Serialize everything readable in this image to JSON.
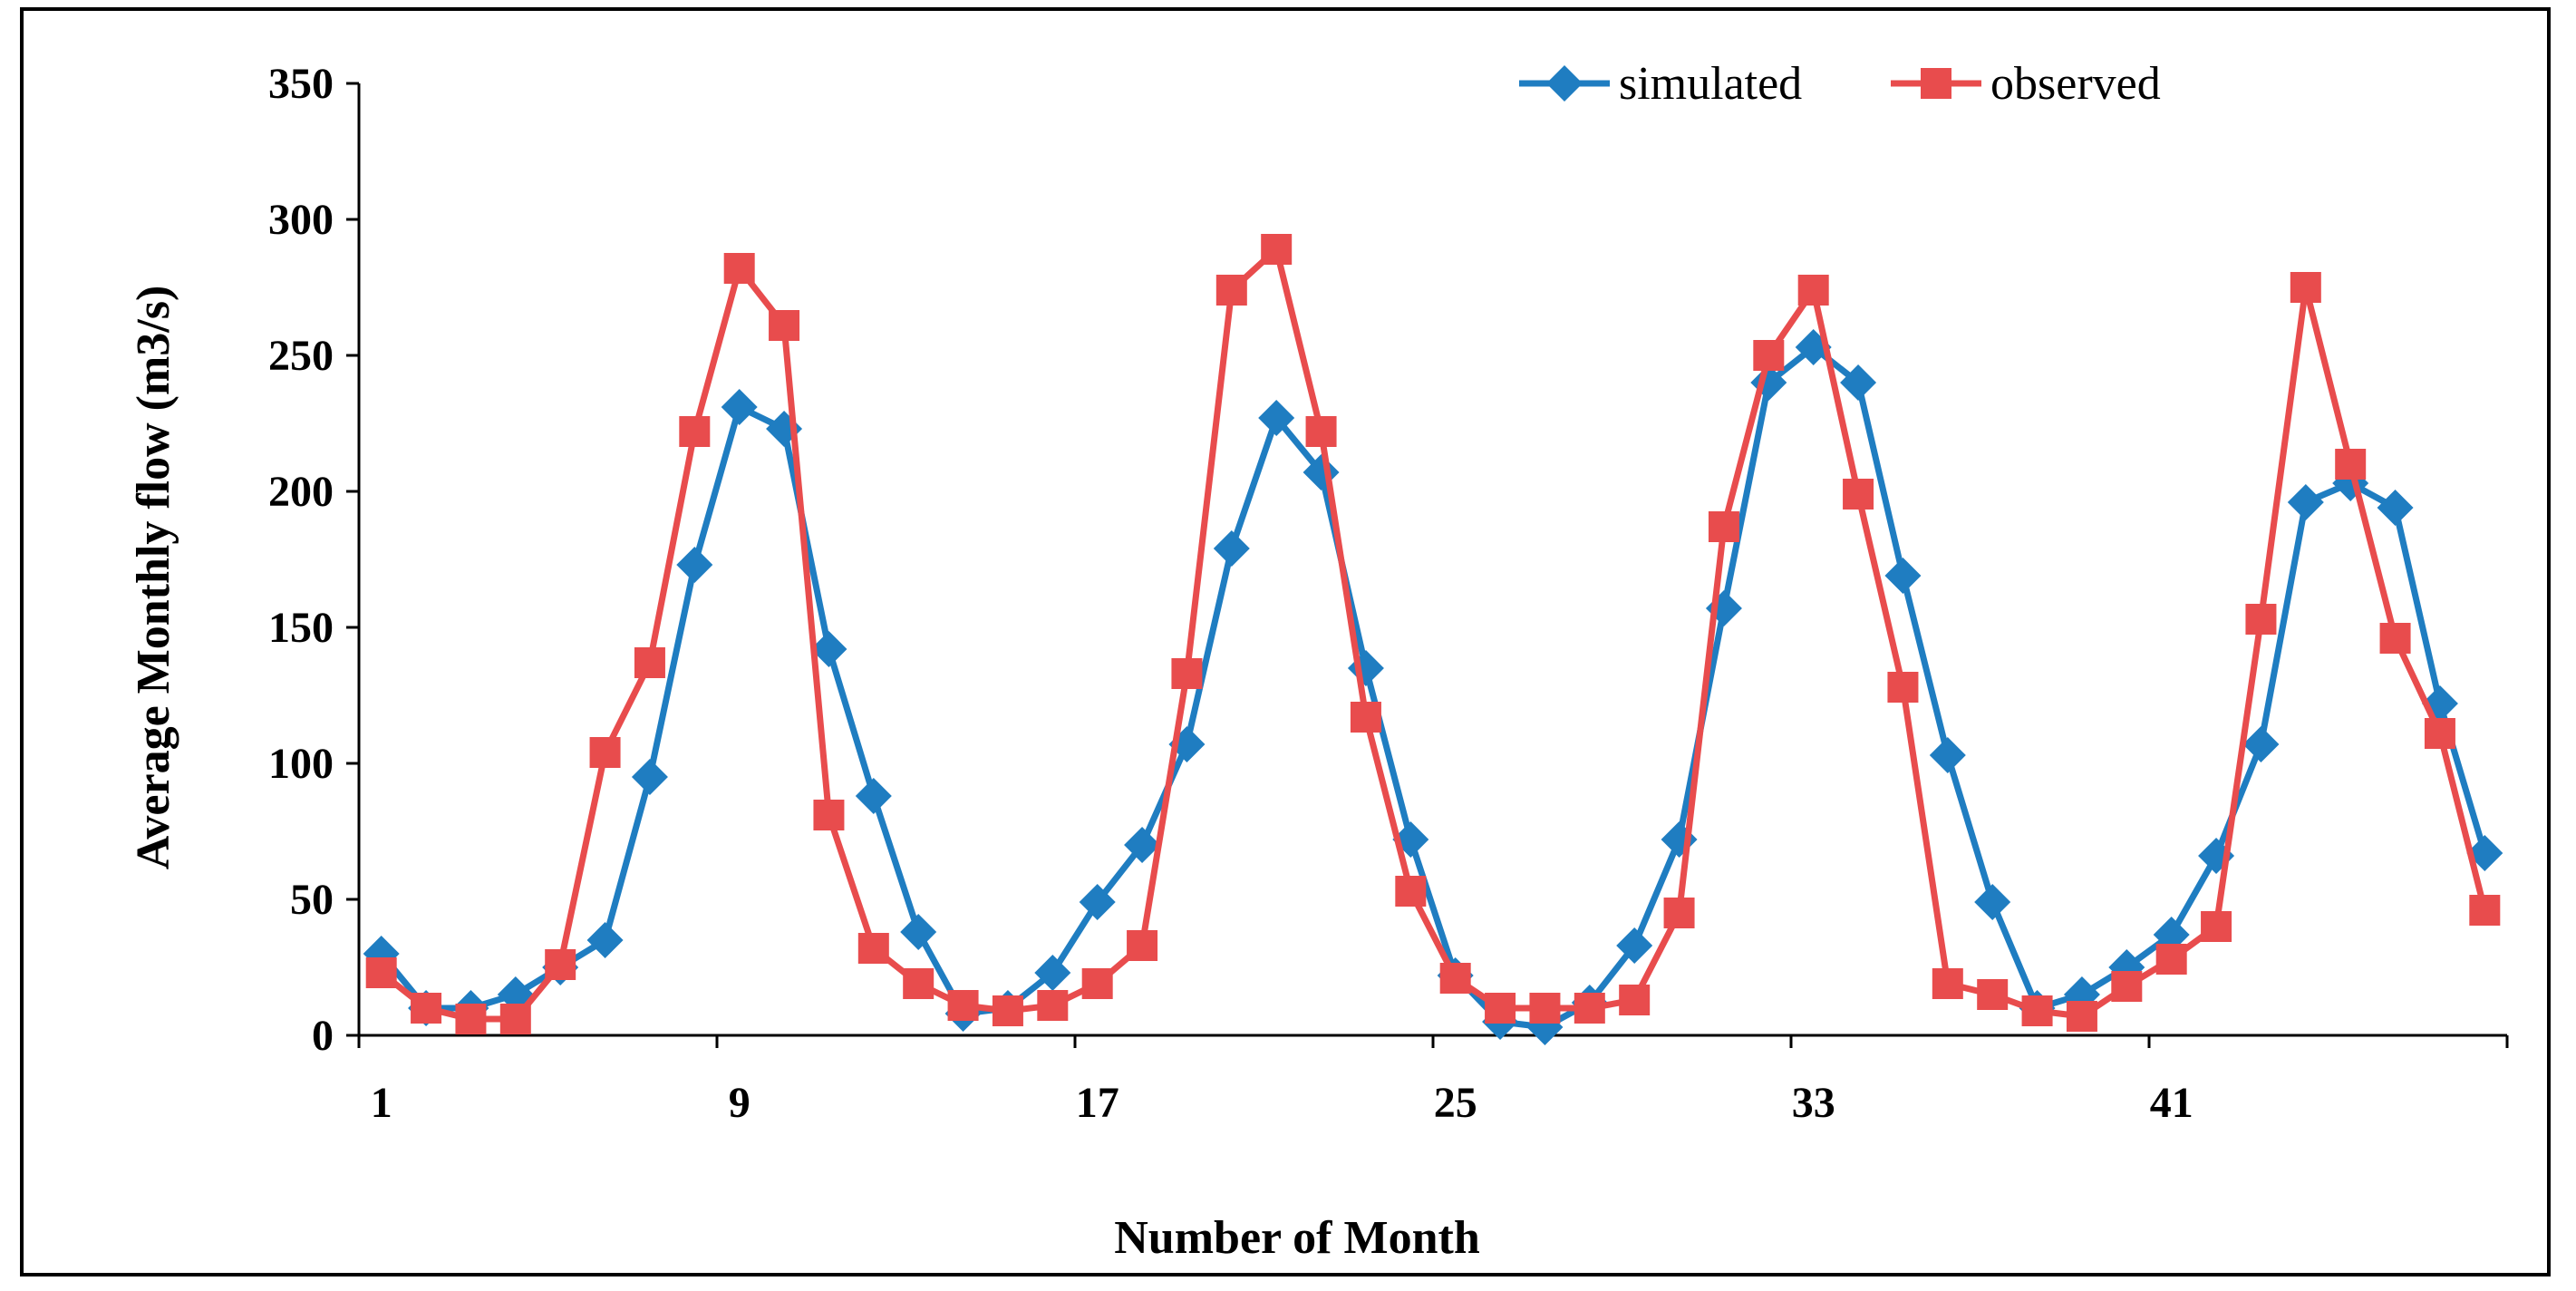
{
  "chart_data": {
    "type": "line",
    "title": "",
    "xlabel": "Number of Month",
    "ylabel": "Average Monthly flow (m3/s)",
    "ylim": [
      0,
      350
    ],
    "yticks": [
      0,
      50,
      100,
      150,
      200,
      250,
      300,
      350
    ],
    "xlim": [
      1,
      48
    ],
    "xticks": [
      1,
      9,
      17,
      25,
      33,
      41
    ],
    "grid": false,
    "legend_position": "top-right",
    "series": [
      {
        "name": "simulated",
        "color": "#1F7DC1",
        "marker": "diamond",
        "x": [
          1,
          2,
          3,
          4,
          5,
          6,
          7,
          8,
          9,
          10,
          11,
          12,
          13,
          14,
          15,
          16,
          17,
          18,
          19,
          20,
          21,
          22,
          23,
          24,
          25,
          26,
          27,
          28,
          29,
          30,
          31,
          32,
          33,
          34,
          35,
          36,
          37,
          38,
          39,
          40,
          41,
          42,
          43,
          44,
          45,
          46,
          47,
          48
        ],
        "values": [
          30,
          10,
          10,
          15,
          25,
          35,
          95,
          173,
          231,
          223,
          142,
          88,
          38,
          8,
          10,
          23,
          49,
          70,
          107,
          179,
          227,
          207,
          135,
          72,
          22,
          5,
          3,
          12,
          33,
          72,
          157,
          240,
          253,
          240,
          169,
          103,
          49,
          10,
          15,
          25,
          37,
          66,
          107,
          196,
          203,
          194,
          122,
          67
        ]
      },
      {
        "name": "observed",
        "color": "#E84C4D",
        "marker": "square",
        "x": [
          1,
          2,
          3,
          4,
          5,
          6,
          7,
          8,
          9,
          10,
          11,
          12,
          13,
          14,
          15,
          16,
          17,
          18,
          19,
          20,
          21,
          22,
          23,
          24,
          25,
          26,
          27,
          28,
          29,
          30,
          31,
          32,
          33,
          34,
          35,
          36,
          37,
          38,
          39,
          40,
          41,
          42,
          43,
          44,
          45,
          46,
          47,
          48
        ],
        "values": [
          23,
          10,
          6,
          6,
          26,
          104,
          137,
          222,
          282,
          261,
          81,
          32,
          19,
          11,
          9,
          11,
          19,
          33,
          133,
          274,
          289,
          222,
          117,
          53,
          21,
          10,
          10,
          10,
          13,
          45,
          187,
          250,
          274,
          199,
          128,
          19,
          15,
          9,
          7,
          18,
          28,
          40,
          153,
          275,
          210,
          146,
          111,
          46
        ]
      }
    ]
  }
}
